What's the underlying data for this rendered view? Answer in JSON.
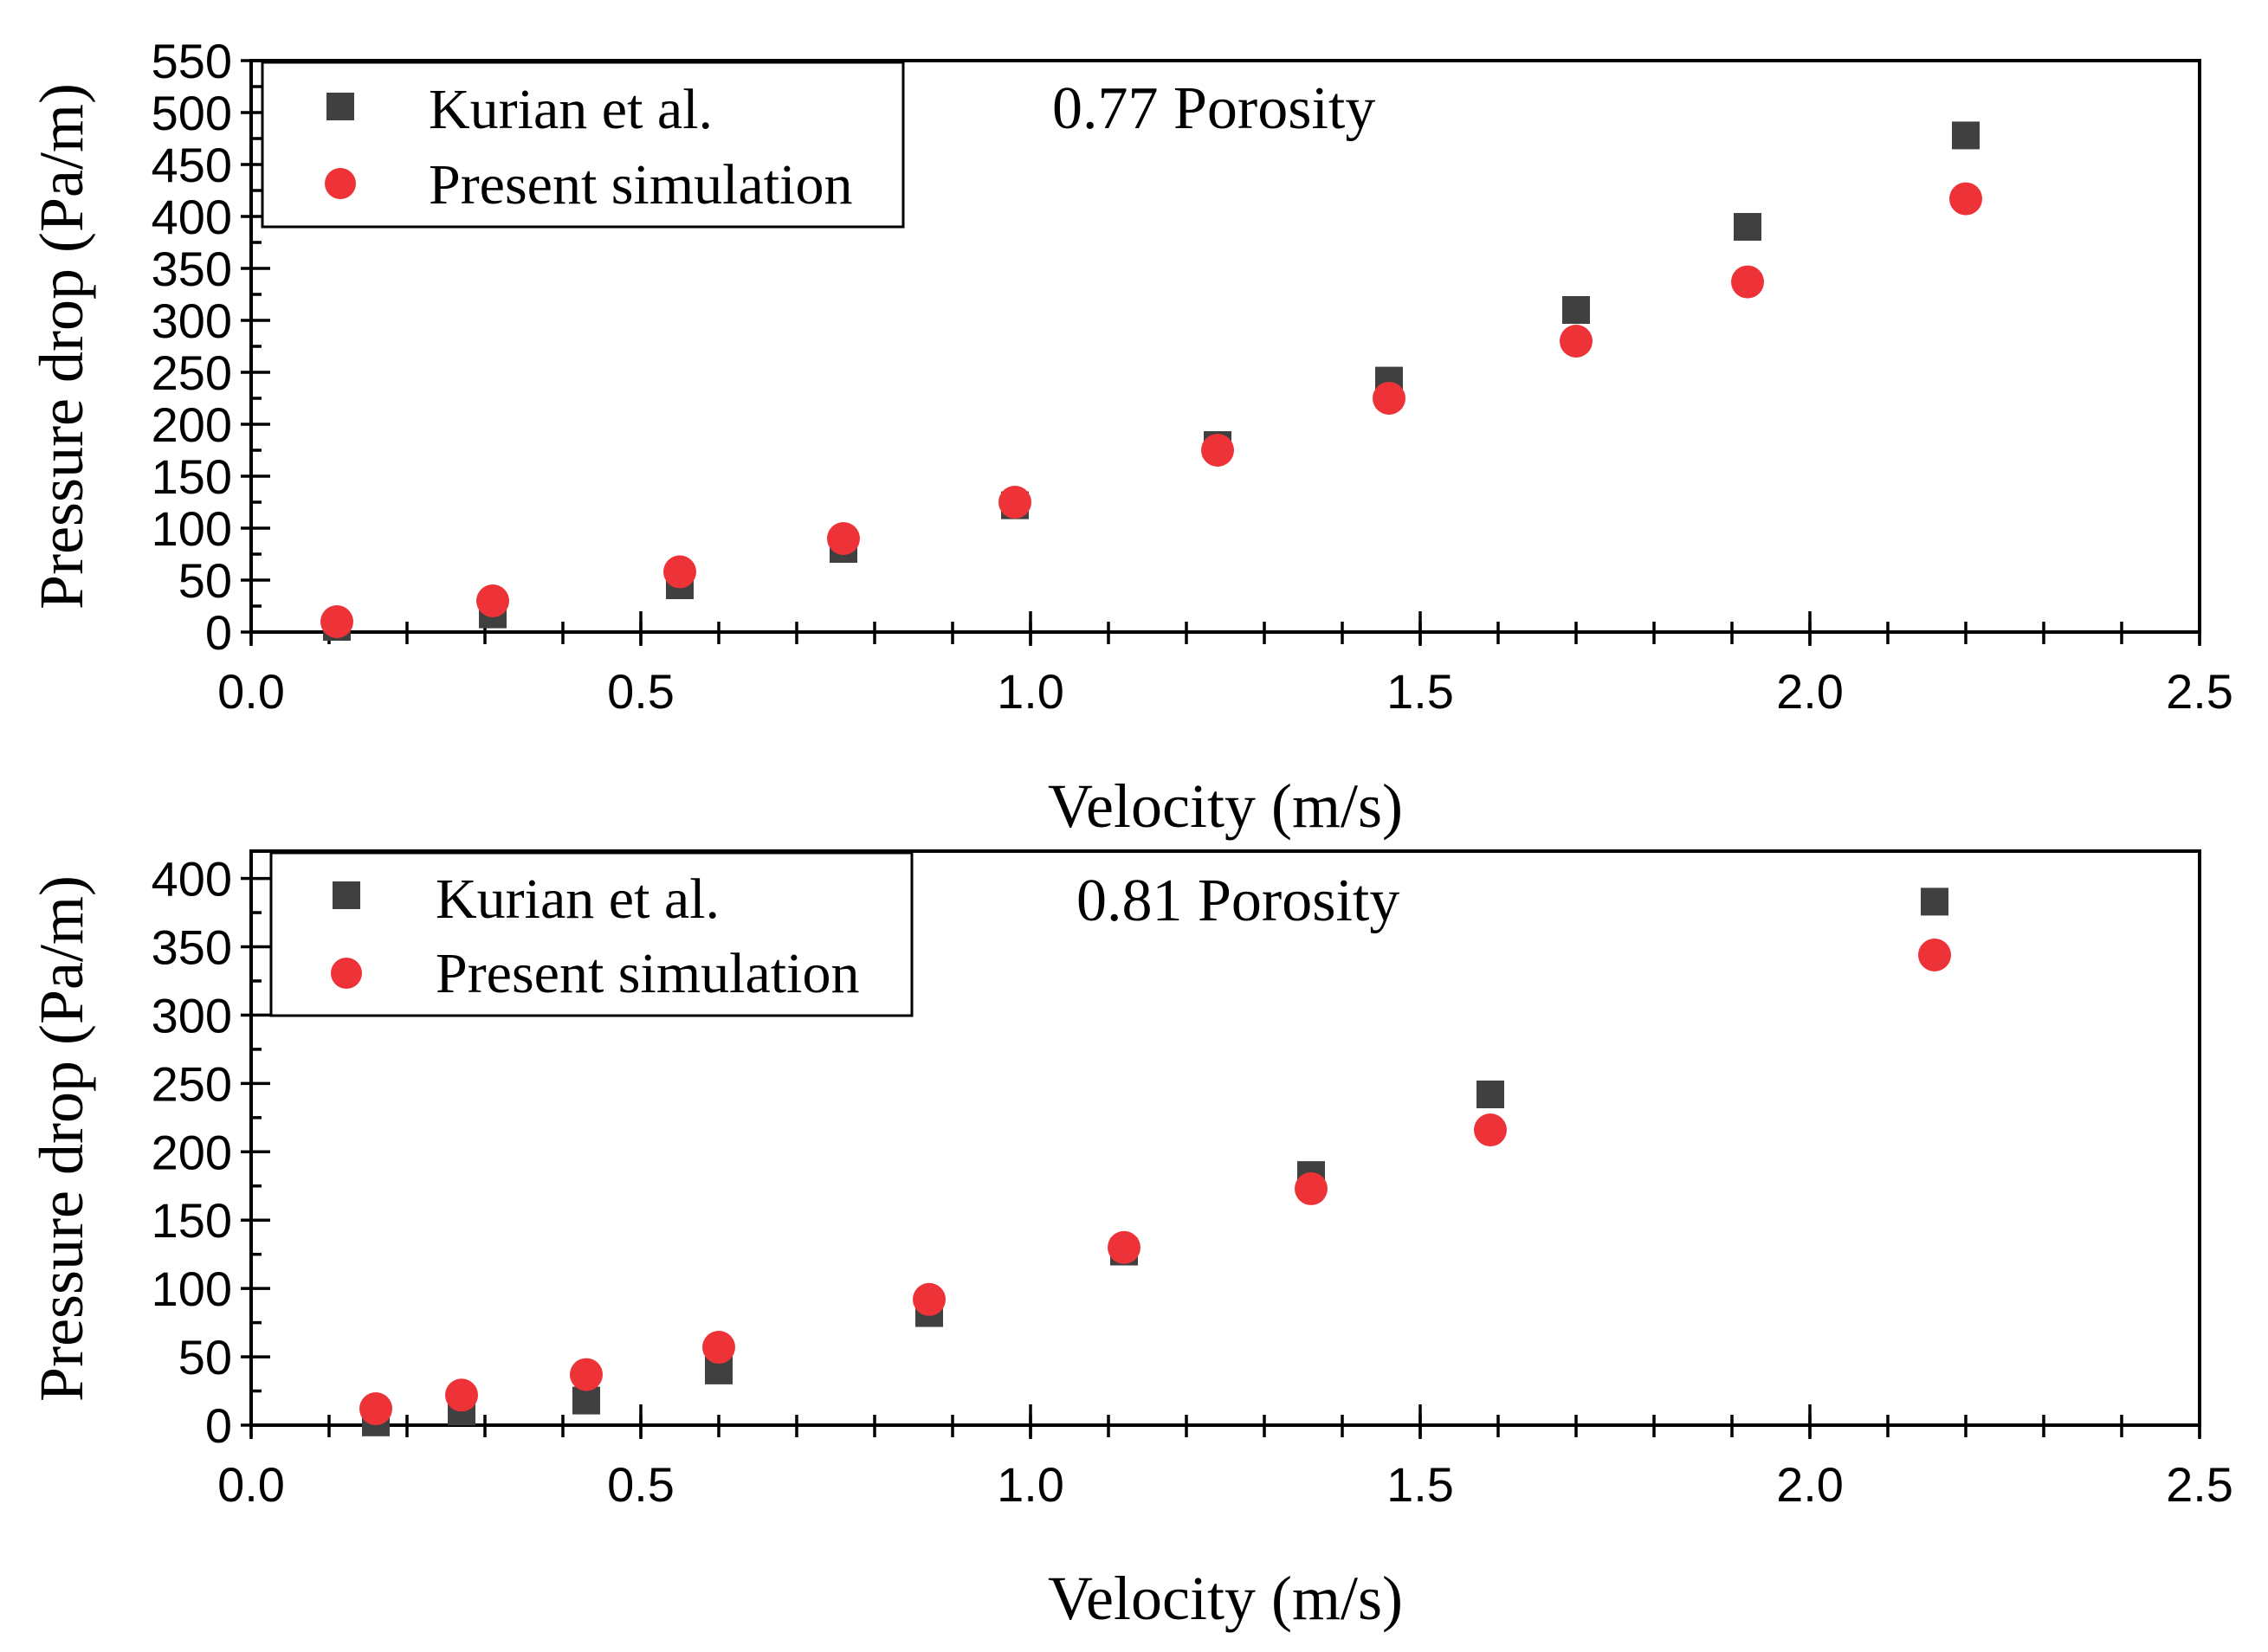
{
  "chart_data": [
    {
      "type": "scatter",
      "annotation": "0.77 Porosity",
      "xlabel": "Velocity (m/s)",
      "ylabel": "Pressure drop (Pa/m)",
      "xlim": [
        0.0,
        2.5
      ],
      "ylim": [
        0,
        550
      ],
      "xticks": [
        "0.0",
        "0.5",
        "1.0",
        "1.5",
        "2.0",
        "2.5"
      ],
      "yticks": [
        "0",
        "50",
        "100",
        "150",
        "200",
        "250",
        "300",
        "350",
        "400",
        "450",
        "500",
        "550"
      ],
      "legend_position": "top-left",
      "series": [
        {
          "name": "Kurian et al.",
          "marker": "square",
          "color": "#404040",
          "x": [
            0.11,
            0.31,
            0.55,
            0.76,
            0.98,
            1.24,
            1.46,
            1.7,
            1.92,
            2.2
          ],
          "y": [
            5,
            17,
            45,
            80,
            122,
            180,
            242,
            310,
            390,
            478
          ]
        },
        {
          "name": "Present simulation",
          "marker": "circle",
          "color": "#ee3338",
          "x": [
            0.11,
            0.31,
            0.55,
            0.76,
            0.98,
            1.24,
            1.46,
            1.7,
            1.92,
            2.2
          ],
          "y": [
            10,
            30,
            58,
            90,
            125,
            175,
            225,
            280,
            337,
            417
          ]
        }
      ]
    },
    {
      "type": "scatter",
      "annotation": "0.81 Porosity",
      "xlabel": "Velocity (m/s)",
      "ylabel": "Pressure drop (Pa/m)",
      "xlim": [
        0.0,
        2.5
      ],
      "ylim": [
        0,
        420
      ],
      "xticks": [
        "0.0",
        "0.5",
        "1.0",
        "1.5",
        "2.0",
        "2.5"
      ],
      "yticks": [
        "0",
        "50",
        "100",
        "150",
        "200",
        "250",
        "300",
        "350",
        "400"
      ],
      "legend_position": "top-left",
      "series": [
        {
          "name": "Kurian et al.",
          "marker": "square",
          "color": "#404040",
          "x": [
            0.16,
            0.27,
            0.43,
            0.6,
            0.87,
            1.12,
            1.36,
            1.59,
            2.16
          ],
          "y": [
            2,
            10,
            18,
            40,
            82,
            127,
            183,
            242,
            383
          ]
        },
        {
          "name": "Present simulation",
          "marker": "circle",
          "color": "#ee3338",
          "x": [
            0.16,
            0.27,
            0.43,
            0.6,
            0.87,
            1.12,
            1.36,
            1.59,
            2.16
          ],
          "y": [
            12,
            22,
            37,
            57,
            92,
            130,
            173,
            216,
            344
          ]
        }
      ]
    }
  ]
}
